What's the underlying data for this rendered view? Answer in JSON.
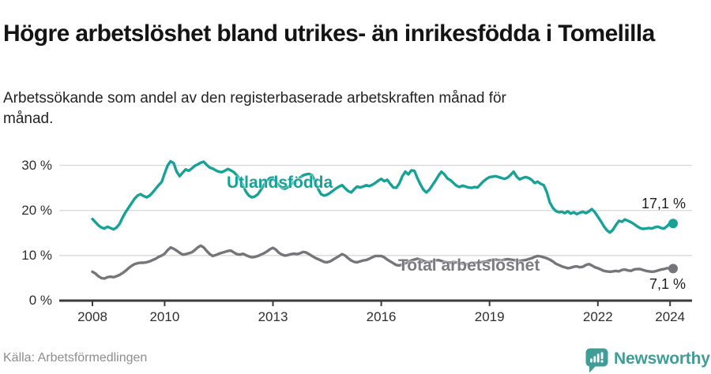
{
  "header": {
    "title": "Högre arbetslöshet bland utrikes- än inrikesfödda i Tomelilla",
    "subtitle": "Arbetssökande som andel av den registerbaserade arbetskraften månad för månad."
  },
  "footer": {
    "source": "Källa: Arbetsförmedlingen",
    "brand_name": "Newsworthy"
  },
  "colors": {
    "series_foreign": "#16a296",
    "series_total": "#76767a",
    "gridline": "#d9d9d9",
    "axis": "#3b3b3b",
    "brand_teal": "#3f9c97"
  },
  "chart_data": {
    "type": "line",
    "title": "Högre arbetslöshet bland utrikes- än inrikesfödda i Tomelilla",
    "subtitle": "Arbetssökande som andel av den registerbaserade arbetskraften månad för månad.",
    "source": "Källa: Arbetsförmedlingen",
    "unit": "%",
    "x_start_year": 2008,
    "x_start_month": 1,
    "x_step_months": 1,
    "x_ticks": [
      2008,
      2010,
      2013,
      2016,
      2019,
      2022,
      2024
    ],
    "y_ticks": [
      {
        "value": 0,
        "label": "0 %"
      },
      {
        "value": 10,
        "label": "10 %"
      },
      {
        "value": 20,
        "label": "20 %"
      },
      {
        "value": 30,
        "label": "30 %"
      }
    ],
    "y_gridlines": [
      10,
      20,
      30
    ],
    "ylim": [
      0,
      33
    ],
    "legend_position": "inline-labels",
    "grid": true,
    "series": [
      {
        "name": "Utlandsfödda",
        "color": "#16a296",
        "end_label": "17,1 %",
        "end_value": 17.1,
        "values": [
          18.1,
          17.4,
          16.7,
          16.2,
          16.0,
          16.4,
          16.1,
          15.8,
          16.2,
          17.0,
          18.4,
          19.6,
          20.6,
          21.6,
          22.6,
          23.3,
          23.6,
          23.2,
          22.9,
          23.3,
          24.0,
          24.8,
          25.6,
          26.3,
          28.2,
          30.0,
          30.9,
          30.5,
          28.6,
          27.6,
          28.4,
          29.1,
          28.8,
          29.3,
          29.9,
          30.2,
          30.6,
          30.8,
          30.1,
          29.5,
          29.3,
          28.9,
          28.6,
          28.5,
          28.8,
          29.2,
          28.9,
          28.5,
          27.8,
          26.9,
          25.6,
          24.2,
          23.3,
          22.9,
          23.1,
          23.6,
          24.6,
          25.7,
          26.6,
          27.2,
          27.3,
          26.4,
          25.6,
          25.0,
          24.8,
          25.2,
          25.8,
          26.3,
          26.8,
          27.3,
          27.8,
          28.0,
          28.1,
          27.8,
          26.5,
          24.8,
          23.6,
          23.3,
          23.5,
          23.9,
          24.4,
          24.9,
          25.3,
          25.6,
          24.9,
          24.3,
          24.0,
          24.7,
          25.3,
          25.1,
          25.3,
          25.6,
          25.4,
          25.7,
          26.1,
          26.6,
          27.0,
          26.5,
          26.8,
          25.9,
          25.1,
          25.0,
          26.0,
          27.6,
          28.6,
          28.0,
          28.9,
          28.8,
          27.2,
          25.8,
          24.6,
          24.0,
          24.6,
          25.6,
          26.6,
          27.7,
          28.6,
          28.0,
          27.1,
          26.7,
          26.1,
          25.5,
          25.2,
          25.5,
          25.3,
          25.1,
          25.0,
          25.2,
          25.1,
          25.8,
          26.5,
          27.0,
          27.4,
          27.5,
          27.6,
          27.4,
          27.2,
          27.0,
          27.3,
          27.9,
          28.6,
          27.5,
          26.9,
          27.2,
          27.4,
          27.2,
          26.8,
          26.1,
          26.4,
          25.9,
          25.6,
          24.1,
          21.8,
          20.6,
          19.9,
          19.6,
          19.7,
          19.4,
          19.8,
          19.3,
          19.6,
          19.2,
          19.5,
          19.7,
          19.4,
          19.8,
          20.3,
          19.6,
          18.6,
          17.6,
          16.5,
          15.6,
          15.1,
          15.7,
          16.8,
          17.7,
          17.5,
          18.0,
          17.7,
          17.4,
          17.0,
          16.5,
          16.1,
          15.9,
          16.0,
          16.1,
          16.0,
          16.3,
          16.4,
          16.1,
          16.0,
          16.5,
          17.2,
          17.1
        ]
      },
      {
        "name": "Total arbetslöshet",
        "color": "#76767a",
        "end_label": "7,1 %",
        "end_value": 7.1,
        "values": [
          6.4,
          6.0,
          5.4,
          5.0,
          4.9,
          5.2,
          5.3,
          5.2,
          5.4,
          5.7,
          6.1,
          6.6,
          7.2,
          7.7,
          8.1,
          8.3,
          8.4,
          8.4,
          8.5,
          8.7,
          9.0,
          9.3,
          9.7,
          10.0,
          10.4,
          11.2,
          11.8,
          11.5,
          11.1,
          10.6,
          10.2,
          10.3,
          10.5,
          10.7,
          11.2,
          11.8,
          12.2,
          11.8,
          11.0,
          10.3,
          9.9,
          10.1,
          10.4,
          10.6,
          10.8,
          11.0,
          11.1,
          10.7,
          10.3,
          10.2,
          10.4,
          10.1,
          9.8,
          9.6,
          9.7,
          9.9,
          10.2,
          10.5,
          10.9,
          11.4,
          11.7,
          11.3,
          10.6,
          10.2,
          10.0,
          10.1,
          10.3,
          10.4,
          10.3,
          10.5,
          10.8,
          10.7,
          10.3,
          9.9,
          9.5,
          9.2,
          8.9,
          8.6,
          8.5,
          8.7,
          9.1,
          9.5,
          9.9,
          10.3,
          10.0,
          9.4,
          8.9,
          8.6,
          8.5,
          8.7,
          8.9,
          9.0,
          9.3,
          9.6,
          9.9,
          9.9,
          9.9,
          9.6,
          9.1,
          8.7,
          8.3,
          7.9,
          7.8,
          8.0,
          8.3,
          8.6,
          8.9,
          9.1,
          9.3,
          9.1,
          8.8,
          8.6,
          8.5,
          8.7,
          8.9,
          9.0,
          8.8,
          8.6,
          8.5,
          8.4,
          8.6,
          8.5,
          8.3,
          8.2,
          8.0,
          8.1,
          8.3,
          8.4,
          8.3,
          8.5,
          8.6,
          8.7,
          8.9,
          9.0,
          9.1,
          9.0,
          8.9,
          9.1,
          9.2,
          9.1,
          9.0,
          8.9,
          8.8,
          8.9,
          9.0,
          9.2,
          9.4,
          9.7,
          9.9,
          9.8,
          9.6,
          9.4,
          9.1,
          8.7,
          8.2,
          7.9,
          7.6,
          7.4,
          7.2,
          7.3,
          7.5,
          7.6,
          7.4,
          7.5,
          7.9,
          8.1,
          7.8,
          7.4,
          7.2,
          6.9,
          6.6,
          6.5,
          6.4,
          6.5,
          6.6,
          6.5,
          6.8,
          6.9,
          6.7,
          6.6,
          6.9,
          7.0,
          7.0,
          6.8,
          6.6,
          6.5,
          6.4,
          6.5,
          6.7,
          6.9,
          7.0,
          7.2,
          7.2,
          7.1
        ]
      }
    ]
  }
}
